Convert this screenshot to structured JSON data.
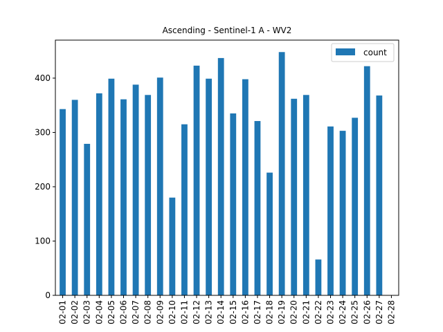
{
  "chart_data": {
    "type": "bar",
    "title": "Ascending - Sentinel-1 A - WV2",
    "xlabel": "",
    "ylabel": "",
    "categories": [
      "02-01",
      "02-02",
      "02-03",
      "02-04",
      "02-05",
      "02-06",
      "02-07",
      "02-08",
      "02-09",
      "02-10",
      "02-11",
      "02-12",
      "02-13",
      "02-14",
      "02-15",
      "02-16",
      "02-17",
      "02-18",
      "02-19",
      "02-20",
      "02-21",
      "02-22",
      "02-23",
      "02-24",
      "02-25",
      "02-26",
      "02-27",
      "02-28"
    ],
    "series": [
      {
        "name": "count",
        "color": "#1f77b4",
        "values": [
          343,
          360,
          279,
          372,
          399,
          361,
          388,
          369,
          401,
          180,
          315,
          423,
          399,
          437,
          335,
          398,
          321,
          226,
          448,
          362,
          369,
          66,
          311,
          303,
          327,
          422,
          368,
          0
        ]
      }
    ],
    "ylim": [
      0,
      470
    ],
    "yticks": [
      0,
      100,
      200,
      300,
      400
    ],
    "grid": false,
    "legend_position": "upper right"
  }
}
